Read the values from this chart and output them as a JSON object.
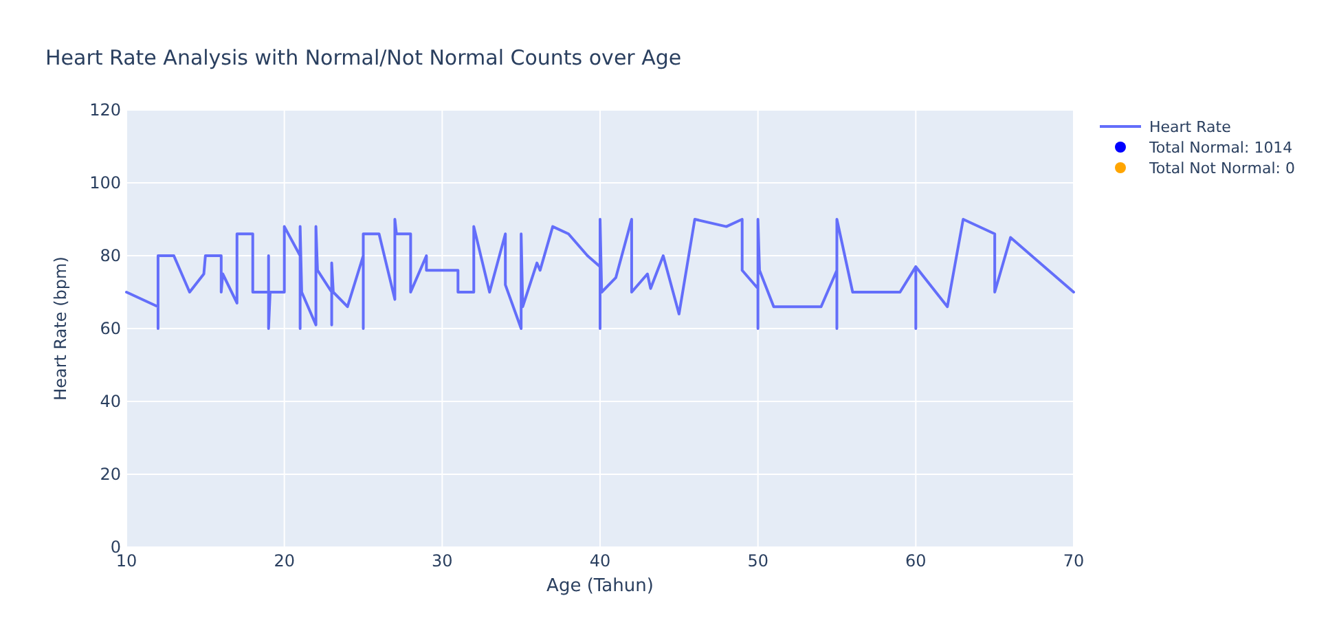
{
  "chart_data": {
    "type": "line",
    "title": "Heart Rate Analysis with Normal/Not Normal Counts over Age",
    "xlabel": "Age (Tahun)",
    "ylabel": "Heart Rate (bpm)",
    "xlim": [
      10,
      70
    ],
    "xticks": [
      10,
      20,
      30,
      40,
      50,
      60,
      70
    ],
    "ylim": [
      0,
      120
    ],
    "yticks": [
      0,
      20,
      40,
      60,
      80,
      100,
      120
    ],
    "grid": true,
    "legend": "top right",
    "marker": "none",
    "series": [
      {
        "name": "Heart Rate",
        "color": "#636efa",
        "x": [
          10,
          12,
          12,
          12,
          13,
          14,
          14.9,
          15,
          16,
          16,
          16.1,
          17,
          17,
          17.1,
          18,
          18,
          19,
          19,
          19,
          19.1,
          20,
          20,
          21,
          21,
          21,
          21.1,
          22,
          22,
          22.1,
          23,
          23,
          23,
          23.1,
          24,
          25,
          25,
          25,
          26,
          27,
          27,
          27.1,
          28,
          28,
          29,
          29,
          30,
          31,
          31,
          32,
          32,
          33,
          34,
          34,
          35,
          35,
          35.1,
          36,
          36.2,
          37,
          38,
          39.2,
          40,
          40,
          40,
          40.1,
          41,
          42,
          42,
          43,
          43.2,
          44,
          45,
          46,
          48,
          49,
          49,
          50,
          50,
          50,
          50.1,
          51,
          54,
          55,
          55,
          55,
          56,
          59,
          60,
          60,
          60,
          62,
          63,
          65,
          65,
          66,
          70
        ],
        "values": [
          70,
          66,
          60,
          80,
          80,
          70,
          75,
          80,
          80,
          70,
          75,
          67,
          86,
          86,
          86,
          70,
          70,
          80,
          60,
          70,
          70,
          88,
          80,
          60,
          88,
          70,
          61,
          88,
          76,
          70,
          61,
          78,
          70,
          66,
          80,
          60,
          86,
          86,
          68,
          90,
          86,
          86,
          70,
          80,
          76,
          76,
          76,
          70,
          70,
          88,
          70,
          86,
          72,
          60,
          86,
          66,
          78,
          76,
          88,
          86,
          80,
          77,
          60,
          90,
          70,
          74,
          90,
          70,
          75,
          71,
          80,
          64,
          90,
          88,
          90,
          76,
          71,
          60,
          90,
          76,
          66,
          66,
          76,
          60,
          90,
          70,
          70,
          77,
          60,
          77,
          66,
          90,
          86,
          70,
          85,
          70
        ]
      },
      {
        "name": "Total Normal: 1014",
        "type": "scatter",
        "color": "#0000ff"
      },
      {
        "name": "Total Not Normal: 0",
        "type": "scatter",
        "color": "#ffa500"
      }
    ]
  }
}
